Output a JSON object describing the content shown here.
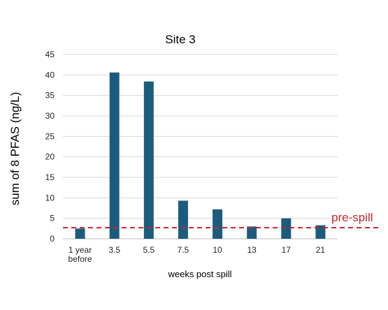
{
  "chart_data": {
    "type": "bar",
    "title": "Site 3",
    "xlabel": "weeks post spill",
    "ylabel": "sum of 8 PFAS (ng/L)",
    "categories": [
      [
        "1 year",
        "before"
      ],
      [
        "3.5"
      ],
      [
        "5.5"
      ],
      [
        "7.5"
      ],
      [
        "10"
      ],
      [
        "13"
      ],
      [
        "17"
      ],
      [
        "21"
      ]
    ],
    "values": [
      2.5,
      40.6,
      38.4,
      9.3,
      7.2,
      3.0,
      5.0,
      3.3
    ],
    "ylim": [
      0,
      45
    ],
    "yticks": [
      0,
      5,
      10,
      15,
      20,
      25,
      30,
      35,
      40,
      45
    ],
    "grid": true,
    "bar_color": "#1b5c7e",
    "reference_line": {
      "label": "pre-spill",
      "value": 2.7,
      "color": "#c8262b",
      "style": "dashed"
    }
  }
}
